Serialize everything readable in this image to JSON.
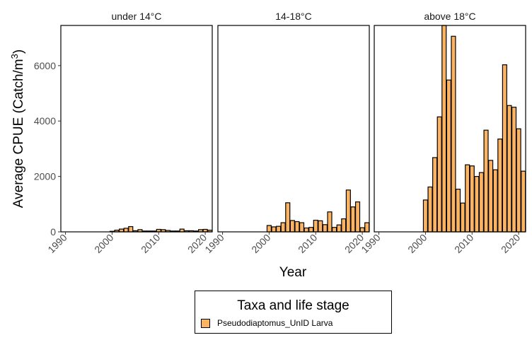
{
  "chart_data": {
    "type": "bar",
    "xlabel": "Year",
    "ylabel": "Average CPUE (Catch/m",
    "ylabel_superscript": "3",
    "ylabel_suffix": ")",
    "xlim": [
      1989,
      2021.5
    ],
    "ylim": [
      0,
      7450
    ],
    "x_ticks": [
      "1990",
      "2000",
      "2010",
      "2020"
    ],
    "y_ticks": [
      "0",
      "2000",
      "4000",
      "6000"
    ],
    "fill_color": "#FDB462",
    "grid": false,
    "legend": {
      "title": "Taxa and life stage",
      "position": "bottom",
      "entries": [
        "Pseudodiaptomus_UnID Larva"
      ]
    },
    "panels": [
      {
        "title": "under 14°C",
        "x": [
          2000,
          2001,
          2002,
          2003,
          2004,
          2005,
          2006,
          2007,
          2008,
          2009,
          2010,
          2011,
          2012,
          2013,
          2014,
          2015,
          2016,
          2017,
          2018,
          2019,
          2020,
          2021
        ],
        "values": [
          20,
          60,
          100,
          130,
          190,
          40,
          80,
          30,
          30,
          30,
          90,
          80,
          50,
          30,
          30,
          100,
          40,
          40,
          30,
          80,
          90,
          60
        ]
      },
      {
        "title": "14-18°C",
        "x": [
          2000,
          2001,
          2002,
          2003,
          2004,
          2005,
          2006,
          2007,
          2008,
          2009,
          2010,
          2011,
          2012,
          2013,
          2014,
          2015,
          2016,
          2017,
          2018,
          2019,
          2020,
          2021
        ],
        "values": [
          230,
          180,
          200,
          330,
          1050,
          410,
          370,
          330,
          140,
          160,
          420,
          400,
          260,
          720,
          160,
          250,
          470,
          1510,
          900,
          1080,
          150,
          330
        ]
      },
      {
        "title": "above 18°C",
        "x": [
          2000,
          2001,
          2002,
          2003,
          2004,
          2005,
          2006,
          2007,
          2008,
          2009,
          2010,
          2011,
          2012,
          2013,
          2014,
          2015,
          2016,
          2017,
          2018,
          2019,
          2020,
          2021
        ],
        "values": [
          1150,
          1620,
          2680,
          4150,
          7450,
          5480,
          7060,
          1540,
          1040,
          2420,
          2380,
          2000,
          2140,
          3670,
          2580,
          2240,
          3350,
          6030,
          4560,
          4500,
          3720,
          2190
        ]
      }
    ]
  }
}
